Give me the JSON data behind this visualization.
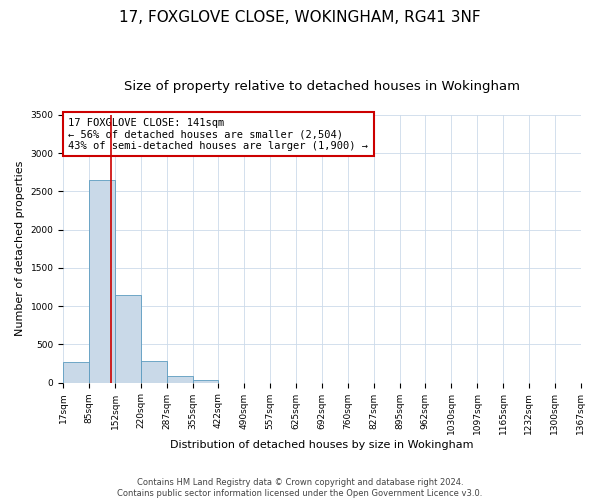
{
  "title": "17, FOXGLOVE CLOSE, WOKINGHAM, RG41 3NF",
  "subtitle": "Size of property relative to detached houses in Wokingham",
  "xlabel": "Distribution of detached houses by size in Wokingham",
  "ylabel": "Number of detached properties",
  "bin_edges": [
    17,
    85,
    152,
    220,
    287,
    355,
    422,
    490,
    557,
    625,
    692,
    760,
    827,
    895,
    962,
    1030,
    1097,
    1165,
    1232,
    1300,
    1367
  ],
  "bin_labels": [
    "17sqm",
    "85sqm",
    "152sqm",
    "220sqm",
    "287sqm",
    "355sqm",
    "422sqm",
    "490sqm",
    "557sqm",
    "625sqm",
    "692sqm",
    "760sqm",
    "827sqm",
    "895sqm",
    "962sqm",
    "1030sqm",
    "1097sqm",
    "1165sqm",
    "1232sqm",
    "1300sqm",
    "1367sqm"
  ],
  "bar_heights": [
    270,
    2650,
    1140,
    280,
    90,
    35,
    0,
    0,
    0,
    0,
    0,
    0,
    0,
    0,
    0,
    0,
    0,
    0,
    0,
    0
  ],
  "bar_color": "#c9d9e8",
  "bar_edge_color": "#5b9bbf",
  "vline_x": 141,
  "vline_color": "#cc0000",
  "ylim": [
    0,
    3500
  ],
  "yticks": [
    0,
    500,
    1000,
    1500,
    2000,
    2500,
    3000,
    3500
  ],
  "annotation_text": "17 FOXGLOVE CLOSE: 141sqm\n← 56% of detached houses are smaller (2,504)\n43% of semi-detached houses are larger (1,900) →",
  "annotation_box_color": "#ffffff",
  "annotation_box_edge": "#cc0000",
  "footer_line1": "Contains HM Land Registry data © Crown copyright and database right 2024.",
  "footer_line2": "Contains public sector information licensed under the Open Government Licence v3.0.",
  "background_color": "#ffffff",
  "grid_color": "#ccdaea",
  "title_fontsize": 11,
  "subtitle_fontsize": 9.5,
  "axis_label_fontsize": 8,
  "tick_fontsize": 6.5,
  "annot_fontsize": 7.5,
  "footer_fontsize": 6
}
